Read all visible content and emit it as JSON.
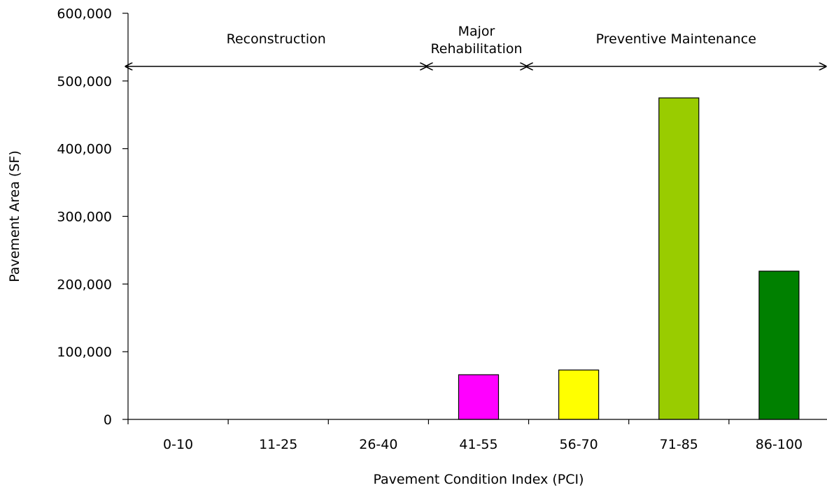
{
  "chart_data": {
    "type": "bar",
    "xlabel": "Pavement Condition Index (PCI)",
    "ylabel": "Pavement Area (SF)",
    "categories": [
      "0-10",
      "11-25",
      "26-40",
      "41-55",
      "56-70",
      "71-85",
      "86-100"
    ],
    "values": [
      0,
      0,
      0,
      66000,
      73000,
      475000,
      219000
    ],
    "bar_colors": [
      "#ff00ff",
      "#ff00ff",
      "#ff00ff",
      "#ff00ff",
      "#ffff00",
      "#99cc00",
      "#008000"
    ],
    "ylim": [
      0,
      600000
    ],
    "yticks": [
      0,
      100000,
      200000,
      300000,
      400000,
      500000,
      600000
    ],
    "ytick_labels": [
      "0",
      "100,000",
      "200,000",
      "300,000",
      "400,000",
      "500,000",
      "600,000"
    ],
    "grid": false,
    "zones": [
      {
        "label_lines": [
          "Reconstruction"
        ],
        "from_category": 0,
        "to_category": 2
      },
      {
        "label_lines": [
          "Major",
          "Rehabilitation"
        ],
        "from_category": 3,
        "to_category": 3
      },
      {
        "label_lines": [
          "Preventive Maintenance"
        ],
        "from_category": 4,
        "to_category": 6
      }
    ]
  }
}
